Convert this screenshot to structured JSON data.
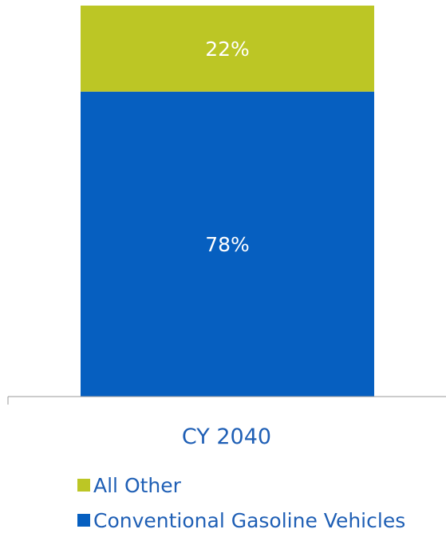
{
  "chart_data": {
    "type": "bar",
    "stacked": true,
    "categories": [
      "CY 2040"
    ],
    "series": [
      {
        "name": "Conventional Gasoline Vehicles",
        "values": [
          78
        ],
        "label": "78%",
        "color": "#065fc0"
      },
      {
        "name": "All Other",
        "values": [
          22
        ],
        "label": "22%",
        "color": "#bcc625"
      }
    ],
    "ylim": [
      0,
      100
    ],
    "grid": false,
    "legend_position": "bottom",
    "title": "",
    "xlabel": "",
    "ylabel": ""
  },
  "legend": [
    {
      "label": "All Other",
      "color": "#bcc625"
    },
    {
      "label": "Conventional Gasoline Vehicles",
      "color": "#065fc0"
    }
  ]
}
